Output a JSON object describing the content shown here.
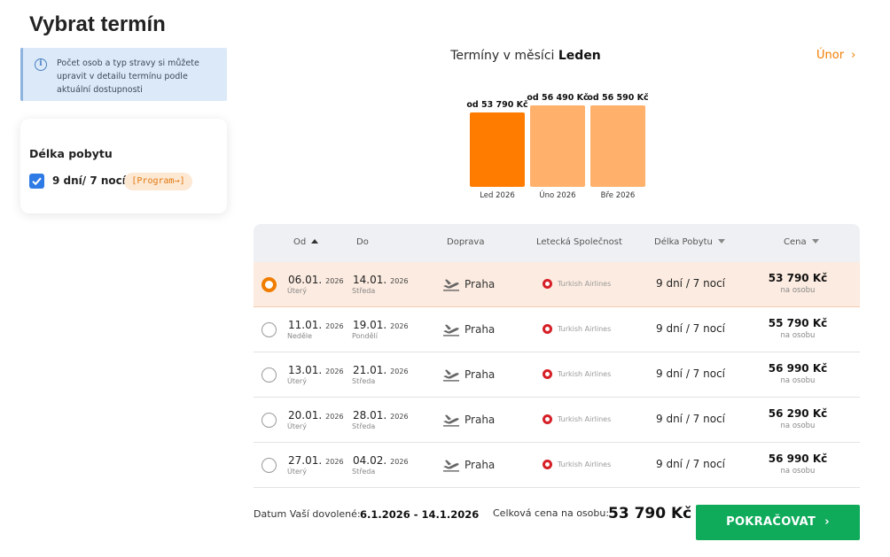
{
  "page_title": "Vybrat termín",
  "info": {
    "text": "Počet osob a typ stravy si můžete upravit v detailu termínu podle aktuální dostupnosti",
    "icon": "info-icon"
  },
  "stay_filter": {
    "title": "Délka pobytu",
    "option_label": "9 dní/ 7 nocí",
    "checked": true,
    "program_label": "[Program→]"
  },
  "calendar": {
    "title_prefix": "Termíny v měsíci",
    "month": "Leden",
    "next_label": "Únor",
    "next_icon": "chevron-right-icon"
  },
  "chart_data": {
    "type": "bar",
    "categories": [
      "Led 2026",
      "Úno 2026",
      "Bře 2026"
    ],
    "values": [
      53790,
      56490,
      56590
    ],
    "price_labels": [
      "od 53 790 Kč",
      "od 56 490 Kč",
      "od 56 590 Kč"
    ],
    "selected_index": 0,
    "colors": {
      "selected": "#ff7c00",
      "default": "#ffb06b"
    },
    "title": "",
    "xlabel": "",
    "ylabel": ""
  },
  "table": {
    "headers": {
      "from": "Od",
      "to": "Do",
      "transport": "Doprava",
      "airline": "Letecká Společnost",
      "stay": "Délka Pobytu",
      "price": "Cena"
    },
    "rows": [
      {
        "from_date": "06.01.",
        "from_year": "2026",
        "from_day": "Úterý",
        "to_date": "14.01.",
        "to_year": "2026",
        "to_day": "Středa",
        "transport": "Praha",
        "airline": "Turkish Airlines",
        "stay": "9 dní / 7 nocí",
        "price": "53 790 Kč",
        "per": "na osobu",
        "selected": true
      },
      {
        "from_date": "11.01.",
        "from_year": "2026",
        "from_day": "Neděle",
        "to_date": "19.01.",
        "to_year": "2026",
        "to_day": "Pondělí",
        "transport": "Praha",
        "airline": "Turkish Airlines",
        "stay": "9 dní / 7 nocí",
        "price": "55 790 Kč",
        "per": "na osobu",
        "selected": false
      },
      {
        "from_date": "13.01.",
        "from_year": "2026",
        "from_day": "Úterý",
        "to_date": "21.01.",
        "to_year": "2026",
        "to_day": "Středa",
        "transport": "Praha",
        "airline": "Turkish Airlines",
        "stay": "9 dní / 7 nocí",
        "price": "56 990 Kč",
        "per": "na osobu",
        "selected": false
      },
      {
        "from_date": "20.01.",
        "from_year": "2026",
        "from_day": "Úterý",
        "to_date": "28.01.",
        "to_year": "2026",
        "to_day": "Středa",
        "transport": "Praha",
        "airline": "Turkish Airlines",
        "stay": "9 dní / 7 nocí",
        "price": "56 290 Kč",
        "per": "na osobu",
        "selected": false
      },
      {
        "from_date": "27.01.",
        "from_year": "2026",
        "from_day": "Úterý",
        "to_date": "04.02.",
        "to_year": "2026",
        "to_day": "Středa",
        "transport": "Praha",
        "airline": "Turkish Airlines",
        "stay": "9 dní / 7 nocí",
        "price": "56 990 Kč",
        "per": "na osobu",
        "selected": false
      }
    ]
  },
  "footer": {
    "dates_label": "Datum Vaší dovolené:",
    "dates_value": "6.1.2026 - 14.1.2026",
    "total_label": "Celková cena na osobu:",
    "total_value": "53 790 Kč",
    "continue_label": "POKRAČOVAT"
  },
  "colors": {
    "accent": "#f07d00",
    "continue": "#0fab5b",
    "selected_row": "#fcebe0",
    "info_bg": "#dbe9f8"
  }
}
